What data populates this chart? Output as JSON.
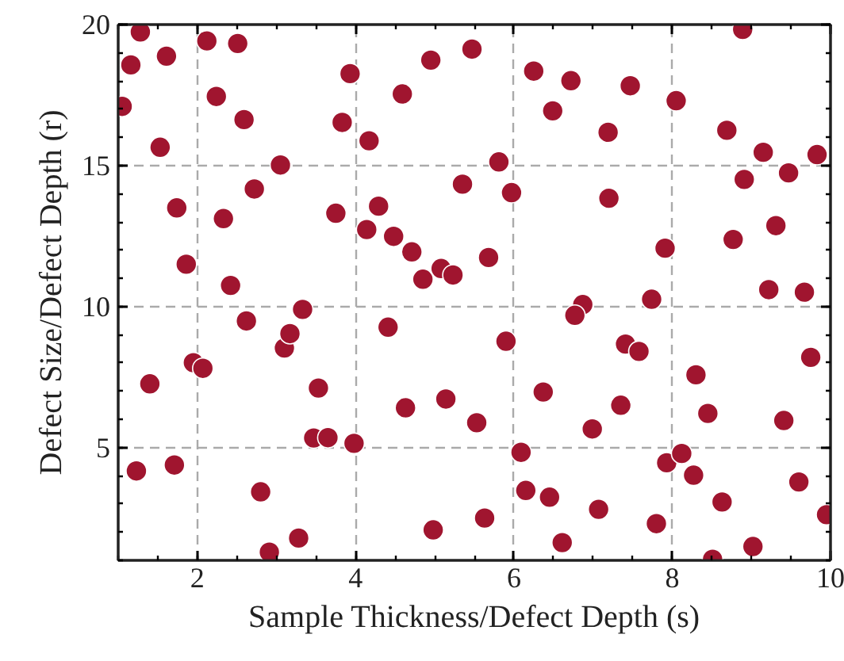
{
  "chart_data": {
    "type": "scatter",
    "xlabel": "Sample Thickness/Defect Depth (s)",
    "ylabel": "Defect Size/Defect Depth (r)",
    "xlim": [
      1,
      10
    ],
    "ylim": [
      1,
      20
    ],
    "xticks": [
      2,
      4,
      6,
      8,
      10
    ],
    "yticks": [
      5,
      10,
      15,
      20
    ],
    "grid": true,
    "marker": "circle",
    "series": [
      {
        "color": "#a0152f",
        "x": [
          1.05,
          1.16,
          1.28,
          1.53,
          1.61,
          1.74,
          1.86,
          2.12,
          2.24,
          2.33,
          2.42,
          2.51,
          2.59,
          2.72,
          3.05,
          3.33,
          3.75,
          3.83,
          3.93,
          4.17,
          4.14,
          4.29,
          4.48,
          4.59,
          4.71,
          4.85,
          4.95,
          5.08,
          5.23,
          5.47,
          5.35,
          5.81,
          5.97,
          5.68,
          6.25,
          6.72,
          6.49,
          7.19,
          7.2,
          7.47,
          8.05,
          7.91,
          7.74,
          6.87,
          6.77,
          8.89,
          8.69,
          9.15,
          9.83,
          8.91,
          9.47,
          8.77,
          9.31,
          9.22,
          9.67,
          1.23,
          1.4,
          1.71,
          1.95,
          2.07,
          2.62,
          2.8,
          2.91,
          3.1,
          3.17,
          3.28,
          3.53,
          3.47,
          3.65,
          3.98,
          4.41,
          4.63,
          4.98,
          5.14,
          5.53,
          5.63,
          5.9,
          6.09,
          6.15,
          6.37,
          6.45,
          6.61,
          6.99,
          7.07,
          7.35,
          7.41,
          7.58,
          7.8,
          7.93,
          8.12,
          8.27,
          8.3,
          8.45,
          8.51,
          8.63,
          9.02,
          9.41,
          9.6,
          9.75,
          9.95
        ],
        "values": [
          17.1,
          18.57,
          19.74,
          15.65,
          18.88,
          13.5,
          11.5,
          19.42,
          17.45,
          13.12,
          10.75,
          19.33,
          16.63,
          14.17,
          15.02,
          9.9,
          13.31,
          16.53,
          18.26,
          15.88,
          12.73,
          13.56,
          12.49,
          17.54,
          11.94,
          10.97,
          18.74,
          11.35,
          11.12,
          19.13,
          14.34,
          15.13,
          14.04,
          11.74,
          18.35,
          18.01,
          16.94,
          16.18,
          13.84,
          17.83,
          17.3,
          12.07,
          10.26,
          10.07,
          9.69,
          19.83,
          16.25,
          15.47,
          15.39,
          14.51,
          14.74,
          12.38,
          12.87,
          10.6,
          10.51,
          4.17,
          7.26,
          4.38,
          8.01,
          7.81,
          9.49,
          3.43,
          1.29,
          8.53,
          9.04,
          1.79,
          7.11,
          5.34,
          5.35,
          5.15,
          9.27,
          6.41,
          2.08,
          6.72,
          5.88,
          2.5,
          8.77,
          4.83,
          3.48,
          6.97,
          3.24,
          1.63,
          5.66,
          2.81,
          6.5,
          8.67,
          8.41,
          2.3,
          4.46,
          4.79,
          4.02,
          7.58,
          6.21,
          1.04,
          3.07,
          1.49,
          5.96,
          3.78,
          8.2,
          2.62
        ]
      }
    ]
  }
}
